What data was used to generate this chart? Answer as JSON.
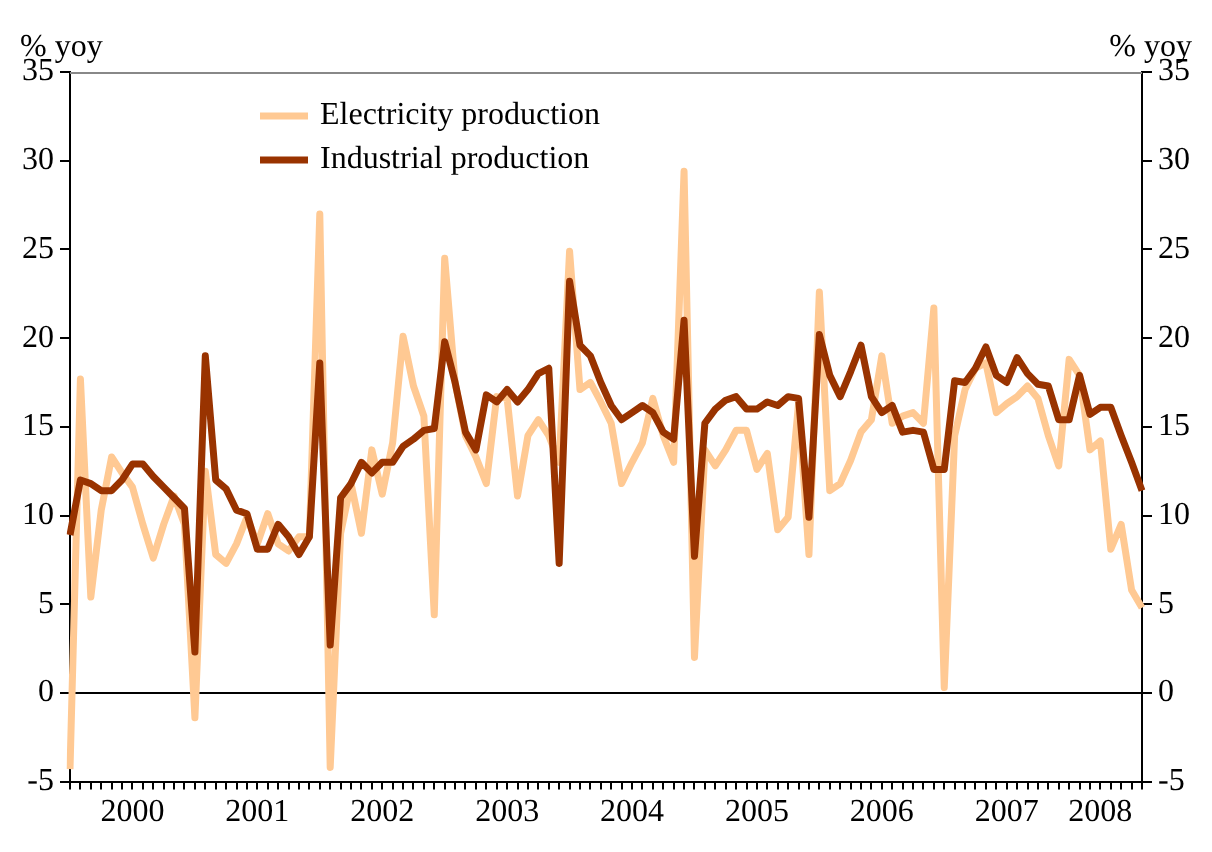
{
  "chart_data": {
    "type": "line",
    "categories": [
      null,
      null,
      null,
      null,
      null,
      null,
      "2000",
      null,
      null,
      null,
      null,
      null,
      null,
      null,
      null,
      null,
      null,
      null,
      "2001",
      null,
      null,
      null,
      null,
      null,
      null,
      null,
      null,
      null,
      null,
      null,
      "2002",
      null,
      null,
      null,
      null,
      null,
      null,
      null,
      null,
      null,
      null,
      null,
      "2003",
      null,
      null,
      null,
      null,
      null,
      null,
      null,
      null,
      null,
      null,
      null,
      "2004",
      null,
      null,
      null,
      null,
      null,
      null,
      null,
      null,
      null,
      null,
      null,
      "2005",
      null,
      null,
      null,
      null,
      null,
      null,
      null,
      null,
      null,
      null,
      null,
      "2006",
      null,
      null,
      null,
      null,
      null,
      null,
      null,
      null,
      null,
      null,
      null,
      "2007",
      null,
      null,
      null,
      null,
      null,
      null,
      null,
      null,
      "2008",
      null,
      null,
      null,
      null
    ],
    "series": [
      {
        "name": "Electricity production",
        "color": "#ffc993",
        "values": [
          -4.3,
          17.7,
          5.4,
          10.3,
          13.3,
          12.4,
          11.6,
          9.5,
          7.6,
          9.5,
          11.1,
          9.5,
          -1.4,
          12.5,
          7.8,
          7.3,
          8.4,
          9.9,
          8.4,
          10.1,
          8.4,
          8.0,
          8.8,
          8.8,
          27.0,
          -4.2,
          9.0,
          11.8,
          9.0,
          13.7,
          11.2,
          14.1,
          20.1,
          17.3,
          15.6,
          4.4,
          24.5,
          17.5,
          14.5,
          13.3,
          11.8,
          16.7,
          16.6,
          11.1,
          14.5,
          15.4,
          14.5,
          13.0,
          24.9,
          17.1,
          17.5,
          16.4,
          15.2,
          11.8,
          13.0,
          14.1,
          16.6,
          14.5,
          13.0,
          29.4,
          2.0,
          13.7,
          12.8,
          13.7,
          14.8,
          14.8,
          12.6,
          13.5,
          9.2,
          9.9,
          16.3,
          7.8,
          22.6,
          11.4,
          11.8,
          13.1,
          14.7,
          15.4,
          19.0,
          15.2,
          15.6,
          15.8,
          15.2,
          21.7,
          0.3,
          14.5,
          17.1,
          18.3,
          18.6,
          15.8,
          16.3,
          16.7,
          17.3,
          16.6,
          14.5,
          12.8,
          18.8,
          17.9,
          13.7,
          14.2,
          8.1,
          9.5,
          5.8,
          4.8
        ]
      },
      {
        "name": "Industrial production",
        "color": "#993300",
        "values": [
          8.9,
          12.0,
          11.8,
          11.4,
          11.4,
          12.0,
          12.9,
          12.9,
          12.2,
          11.6,
          11.0,
          10.4,
          2.3,
          19.0,
          12.0,
          11.5,
          10.3,
          10.1,
          8.1,
          8.1,
          9.5,
          8.8,
          7.8,
          8.8,
          18.6,
          2.7,
          11.0,
          11.8,
          13.0,
          12.4,
          13.0,
          13.0,
          13.9,
          14.3,
          14.8,
          14.9,
          19.8,
          17.5,
          14.7,
          13.7,
          16.8,
          16.4,
          17.1,
          16.4,
          17.1,
          18.0,
          18.3,
          7.3,
          23.2,
          19.6,
          19.0,
          17.5,
          16.2,
          15.4,
          15.8,
          16.2,
          15.8,
          14.7,
          14.3,
          21.0,
          7.7,
          15.2,
          16.0,
          16.5,
          16.7,
          16.0,
          16.0,
          16.4,
          16.2,
          16.7,
          16.6,
          9.9,
          20.2,
          17.9,
          16.7,
          18.1,
          19.6,
          16.7,
          15.8,
          16.2,
          14.7,
          14.8,
          14.7,
          12.6,
          12.6,
          17.6,
          17.5,
          18.3,
          19.5,
          17.9,
          17.5,
          18.9,
          18.0,
          17.4,
          17.3,
          15.4,
          15.4,
          17.9,
          15.7,
          16.1,
          16.1,
          14.5,
          13.0,
          11.4
        ]
      }
    ],
    "ylabel": "% yoy",
    "y2label": "% yoy",
    "ylim": [
      -5,
      35
    ],
    "yticks": [
      -5,
      0,
      5,
      10,
      15,
      20,
      25,
      30,
      35
    ],
    "y2lim": [
      -5,
      35
    ],
    "y2ticks": [
      -5,
      0,
      5,
      10,
      15,
      20,
      25,
      30,
      35
    ],
    "ref_lines": [
      {
        "axis": "y",
        "value": 0,
        "color": "#000000"
      }
    ],
    "grid": false,
    "legend": "top left",
    "marker": "none",
    "line_style": "solid"
  }
}
